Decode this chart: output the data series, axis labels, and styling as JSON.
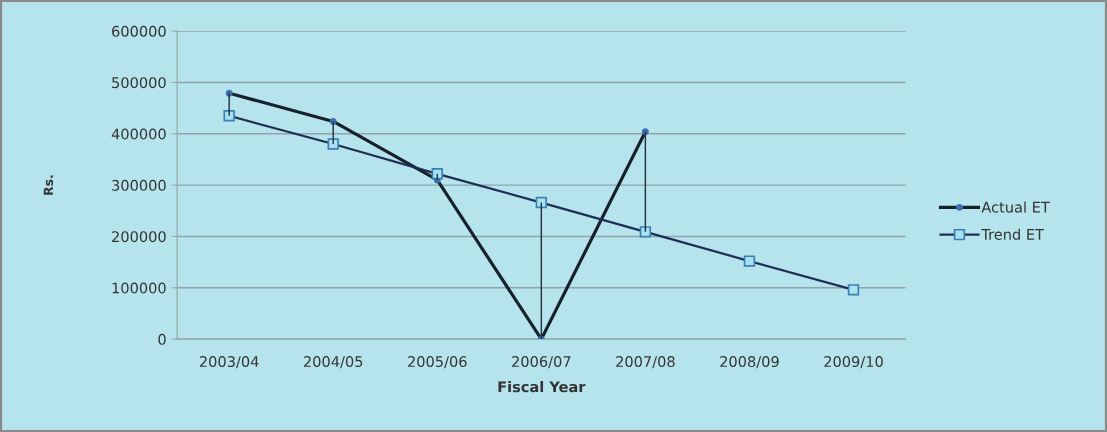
{
  "chart_data": {
    "type": "line",
    "xlabel": "Fiscal Year",
    "ylabel": "Rs.",
    "categories": [
      "2003/04",
      "2004/05",
      "2005/06",
      "2006/07",
      "2007/08",
      "2008/09",
      "2009/10"
    ],
    "series": [
      {
        "name": "Actual ET",
        "color": "#17212e",
        "marker": "circle",
        "values": [
          479000,
          424000,
          310000,
          0,
          404000,
          null,
          null
        ]
      },
      {
        "name": "Trend ET",
        "color": "#1e2f55",
        "marker": "square",
        "values": [
          435000,
          380000,
          322000,
          266000,
          209000,
          152000,
          96000
        ],
        "errors": [
          [
            435000,
            479000
          ],
          [
            380000,
            424000
          ],
          [
            310000,
            322000
          ],
          [
            0,
            266000
          ],
          [
            209000,
            404000
          ],
          null,
          null
        ]
      }
    ],
    "ylim": [
      0,
      600000
    ],
    "yticks": [
      0,
      100000,
      200000,
      300000,
      400000,
      500000,
      600000
    ],
    "grid": "y",
    "legend": "right",
    "line_style": "solid"
  }
}
